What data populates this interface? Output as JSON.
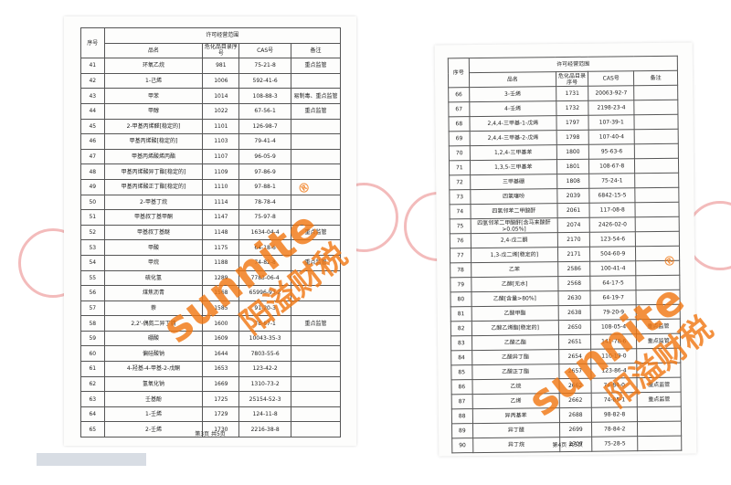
{
  "pages": [
    {
      "header": {
        "range": "许可经营范围",
        "no": "序号",
        "name": "品名",
        "catalog": "危化品目录序号",
        "cas": "CAS号",
        "note": "备注"
      },
      "rows": [
        [
          "41",
          "环氧乙烷",
          "981",
          "75-21-8",
          "重点监管"
        ],
        [
          "42",
          "1-己烯",
          "1006",
          "592-41-6"
        ],
        [
          "43",
          "甲苯",
          "1014",
          "108-88-3",
          "易制毒、重点监管"
        ],
        [
          "44",
          "甲醇",
          "1022",
          "67-56-1",
          "重点监管"
        ],
        [
          "45",
          "2-甲基丙烯醛[稳定的]",
          "1101",
          "126-98-7"
        ],
        [
          "46",
          "甲基丙烯酸[稳定的]",
          "1103",
          "79-41-4"
        ],
        [
          "47",
          "甲基丙烯酸烯丙酯",
          "1107",
          "96-05-9"
        ],
        [
          "48",
          "甲基丙烯酸异丁酯[稳定的]",
          "1109",
          "97-86-9"
        ],
        [
          "49",
          "甲基丙烯酸正丁酯[稳定的]",
          "1110",
          "97-88-1"
        ],
        [
          "50",
          "2-甲基丁烷",
          "1114",
          "78-78-4"
        ],
        [
          "51",
          "甲基叔丁基甲酮",
          "1147",
          "75-97-8"
        ],
        [
          "52",
          "甲基叔丁基醚",
          "1148",
          "1634-04-4",
          "重点监管"
        ],
        [
          "53",
          "甲酸",
          "1175",
          "64-18-6"
        ],
        [
          "54",
          "甲烷",
          "1188",
          "74-82-8",
          "重点监管"
        ],
        [
          "55",
          "硫化氢",
          "1289",
          "7783-06-4"
        ],
        [
          "56",
          "煤焦沥青",
          "1568",
          "65996-93-2"
        ],
        [
          "57",
          "萘",
          "1585",
          "91-20-3"
        ],
        [
          "58",
          "2,2'-偶氮二异丁腈",
          "1600",
          "78-67-1",
          "重点监管"
        ],
        [
          "59",
          "硼酸",
          "1609",
          "10043-35-3"
        ],
        [
          "60",
          "偏硅酸钠",
          "1644",
          "7803-55-6"
        ],
        [
          "61",
          "4-羟基-4-甲基-2-戊酮",
          "1653",
          "123-42-2"
        ],
        [
          "62",
          "氢氧化钠",
          "1669",
          "1310-73-2"
        ],
        [
          "63",
          "壬基酚",
          "1725",
          "25154-52-3"
        ],
        [
          "64",
          "1-壬烯",
          "1729",
          "124-11-8"
        ],
        [
          "65",
          "2-壬烯",
          "1730",
          "2216-38-8"
        ]
      ],
      "footer": "第3页 共5页"
    },
    {
      "header": {
        "range": "许可经营范围",
        "no": "序号",
        "name": "品名",
        "catalog": "危化品目录序号",
        "cas": "CAS号",
        "note": "备注"
      },
      "rows": [
        [
          "66",
          "3-壬烯",
          "1731",
          "20063-92-7"
        ],
        [
          "67",
          "4-壬烯",
          "1732",
          "2198-23-4"
        ],
        [
          "68",
          "2,4,4-三甲基-1-戊烯",
          "1797",
          "107-39-1"
        ],
        [
          "69",
          "2,4,4-三甲基-2-戊烯",
          "1798",
          "107-40-4"
        ],
        [
          "70",
          "1,2,4-三甲基苯",
          "1800",
          "95-63-6"
        ],
        [
          "71",
          "1,3,5-三甲基苯",
          "1801",
          "108-67-8"
        ],
        [
          "72",
          "三甲基硼",
          "1808",
          "75-24-1"
        ],
        [
          "73",
          "四氢噻吩",
          "2039",
          "6842-15-5"
        ],
        [
          "74",
          "四氢邻苯二甲酸酐",
          "2061",
          "117-08-8"
        ],
        [
          "75",
          "四氢邻苯二甲酸酐[含马来酸酐>0.05%]",
          "2074",
          "2426-02-0"
        ],
        [
          "76",
          "2,4-戊二酮",
          "2170",
          "123-54-6"
        ],
        [
          "77",
          "1,3-戊二烯[稳定的]",
          "2171",
          "504-60-9"
        ],
        [
          "78",
          "乙苯",
          "2586",
          "100-41-4"
        ],
        [
          "79",
          "乙醇[无水]",
          "2568",
          "64-17-5"
        ],
        [
          "80",
          "乙酸[含量>80%]",
          "2630",
          "64-19-7"
        ],
        [
          "81",
          "乙酸甲酯",
          "2638",
          "79-20-9"
        ],
        [
          "82",
          "乙酸乙烯酯[稳定的]",
          "2650",
          "108-05-4",
          "重点监管"
        ],
        [
          "83",
          "乙酸乙酯",
          "2651",
          "141-78-6",
          "重点监管"
        ],
        [
          "84",
          "乙酸异丁酯",
          "2654",
          "110-19-0"
        ],
        [
          "85",
          "乙酸正丁酯",
          "2657",
          "123-86-4"
        ],
        [
          "86",
          "乙烷",
          "2662",
          "74-84-0",
          "重点监管"
        ],
        [
          "87",
          "乙烯",
          "2662",
          "74-85-1",
          "重点监管"
        ],
        [
          "88",
          "异丙基苯",
          "2688",
          "98-82-8"
        ],
        [
          "89",
          "异丁醛",
          "2699",
          "78-84-2"
        ],
        [
          "90",
          "异丁烷",
          "2707",
          "75-28-5"
        ]
      ],
      "footer": "第4页 共5页"
    }
  ],
  "watermark": {
    "brand": "sunnite",
    "cn": "阳溢财税",
    "mark": "®"
  }
}
